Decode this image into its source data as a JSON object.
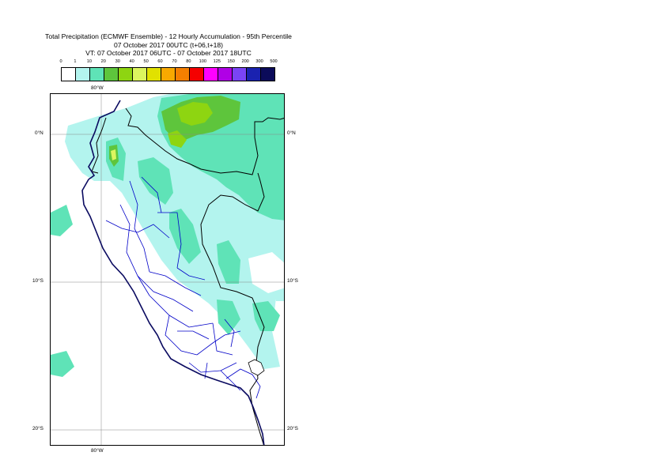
{
  "title": {
    "line1": "Total Precipitation (ECMWF Ensemble) - 12 Hourly Accumulation - 95th Percentile",
    "line2": "07 October 2017 00UTC (t+06,t+18)",
    "line3": "VT: 07 October 2017 06UTC - 07 October 2017 18UTC"
  },
  "legend": {
    "labels": [
      "0",
      "1",
      "10",
      "20",
      "30",
      "40",
      "50",
      "60",
      "70",
      "80",
      "100",
      "125",
      "150",
      "200",
      "300",
      "500"
    ],
    "colors": [
      "#ffffff",
      "#b3f4ee",
      "#5fe3b7",
      "#5ec53c",
      "#8ed511",
      "#dcf55f",
      "#e1e100",
      "#f8a900",
      "#f57f00",
      "#f50000",
      "#ff00ff",
      "#b000e6",
      "#7a44f5",
      "#1a22b0",
      "#0b0b5a"
    ]
  },
  "axes": {
    "top_lon": "80°W",
    "bottom_lon": "80°W",
    "lat_left": [
      "0°N",
      "10°S",
      "20°S"
    ],
    "lat_right": [
      "0°N",
      "10°S",
      "20°S"
    ]
  }
}
